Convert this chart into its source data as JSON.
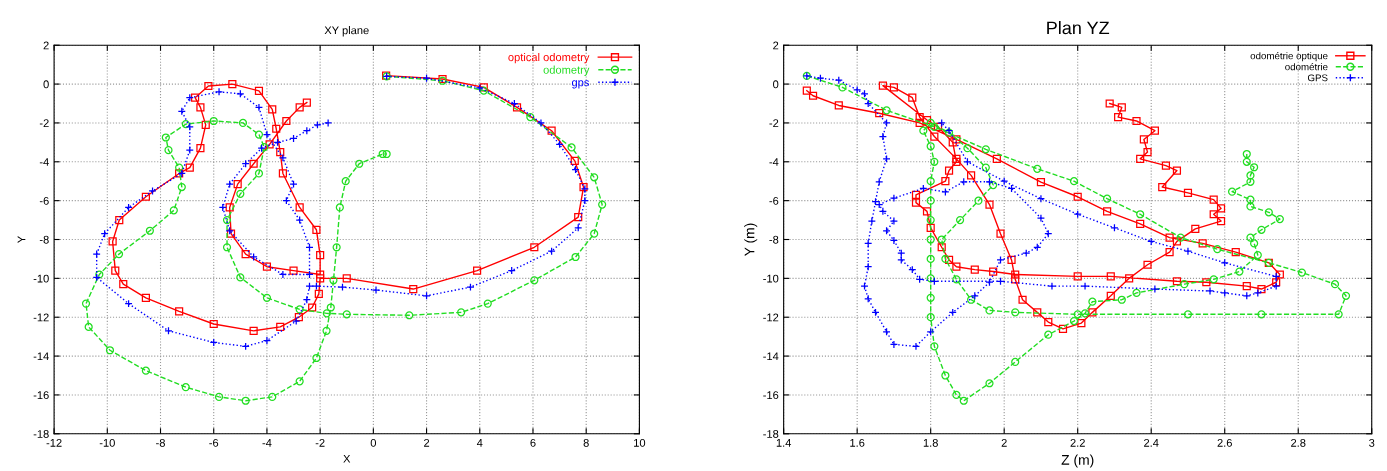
{
  "chart_data": [
    {
      "type": "line",
      "title": "XY plane",
      "xlabel": "X",
      "ylabel": "Y",
      "xlim": [
        -12,
        10
      ],
      "ylim": [
        -18,
        2
      ],
      "xticks": [
        -12,
        -10,
        -8,
        -6,
        -4,
        -2,
        0,
        2,
        4,
        6,
        8,
        10
      ],
      "yticks": [
        -18,
        -16,
        -14,
        -12,
        -10,
        -8,
        -6,
        -4,
        -2,
        0,
        2
      ],
      "grid": true,
      "legend": "top right",
      "series": [
        {
          "name": "optical odometry",
          "color": "#ff0000",
          "marker": "square",
          "line_style": "solid",
          "x": [
            0.48,
            2.6,
            4.15,
            5.4,
            6.7,
            7.57,
            7.9,
            7.7,
            6.05,
            3.9,
            1.5,
            -1.0,
            -2.0,
            -2.05,
            -2.3,
            -2.8,
            -3.5,
            -4.5,
            -6.0,
            -7.3,
            -8.55,
            -9.4,
            -9.7,
            -9.8,
            -9.55,
            -8.55,
            -7.3,
            -6.9,
            -6.5,
            -6.3,
            -6.5,
            -6.7,
            -6.2,
            -5.3,
            -4.3,
            -3.8,
            -3.65,
            -3.5,
            -3.4,
            -2.77,
            -2.14,
            -2.0,
            -2.0,
            -3.0,
            -4.0,
            -4.8,
            -5.35,
            -5.4,
            -5.1,
            -4.5,
            -3.9,
            -3.27,
            -2.77,
            -2.5
          ],
          "values": [
            0.43,
            0.26,
            -0.17,
            -1.2,
            -2.4,
            -3.95,
            -5.3,
            -6.85,
            -8.4,
            -9.6,
            -10.55,
            -10.0,
            -10.0,
            -10.8,
            -11.5,
            -12.0,
            -12.5,
            -12.7,
            -12.35,
            -11.7,
            -11.0,
            -10.3,
            -9.6,
            -8.1,
            -7.0,
            -5.8,
            -4.6,
            -4.3,
            -3.3,
            -2.1,
            -1.2,
            -0.7,
            -0.1,
            0.0,
            -0.35,
            -1.3,
            -2.3,
            -3.5,
            -4.6,
            -6.35,
            -7.5,
            -8.8,
            -9.8,
            -9.6,
            -9.4,
            -8.75,
            -7.7,
            -6.35,
            -5.15,
            -4.1,
            -3.1,
            -1.9,
            -1.2,
            -0.95
          ]
        },
        {
          "name": "odometry",
          "color": "#22dd22",
          "marker": "circle",
          "line_style": "dashed",
          "x": [
            0.5,
            2.6,
            4.15,
            5.9,
            7.45,
            8.3,
            8.6,
            8.3,
            7.6,
            6.05,
            4.3,
            3.3,
            1.35,
            -1.0,
            -1.75,
            -2.77,
            -4.0,
            -5.0,
            -5.5,
            -5.5,
            -5.0,
            -4.3,
            -4.1,
            -4.3,
            -4.9,
            -6.0,
            -7.05,
            -7.8,
            -7.7,
            -7.3,
            -7.2,
            -7.5,
            -8.4,
            -9.56,
            -10.3,
            -10.8,
            -10.7,
            -9.9,
            -8.55,
            -7.05,
            -5.8,
            -4.8,
            -3.8,
            -2.77,
            -2.14,
            -1.76,
            -1.6,
            -1.5,
            -1.38,
            -1.26,
            -1.04,
            -0.53,
            0.35,
            0.5
          ],
          "values": [
            0.4,
            0.17,
            -0.34,
            -1.7,
            -3.26,
            -4.8,
            -6.2,
            -7.7,
            -8.9,
            -10.1,
            -11.3,
            -11.75,
            -11.9,
            -11.85,
            -11.8,
            -11.6,
            -11.0,
            -9.95,
            -8.4,
            -7.0,
            -5.65,
            -4.6,
            -3.25,
            -2.6,
            -2.0,
            -1.9,
            -2.06,
            -2.75,
            -3.4,
            -4.3,
            -5.3,
            -6.5,
            -7.55,
            -8.75,
            -9.8,
            -11.3,
            -12.5,
            -13.7,
            -14.75,
            -15.6,
            -16.1,
            -16.3,
            -16.1,
            -15.3,
            -14.1,
            -12.7,
            -11.5,
            -10.1,
            -8.4,
            -6.35,
            -5.0,
            -4.1,
            -3.6,
            -3.6
          ]
        },
        {
          "name": "gps",
          "color": "#0000ff",
          "marker": "cross",
          "line_style": "dotted",
          "x": [
            0.5,
            2.0,
            4.0,
            5.3,
            6.3,
            7.0,
            7.6,
            7.95,
            7.95,
            7.7,
            6.7,
            5.2,
            3.65,
            2.0,
            0.1,
            -1.16,
            -2.14,
            -2.4,
            -2.5,
            -2.9,
            -4.0,
            -4.8,
            -6.0,
            -7.7,
            -9.2,
            -10.4,
            -10.4,
            -10.1,
            -9.2,
            -8.3,
            -7.2,
            -6.9,
            -6.9,
            -7.2,
            -6.9,
            -5.8,
            -5.0,
            -4.3,
            -4.0,
            -3.4,
            -3.0,
            -3.27,
            -2.77,
            -2.4,
            -2.4,
            -3.4,
            -4.5,
            -5.4,
            -5.66,
            -5.4,
            -4.8,
            -4.2,
            -3.6,
            -3.0,
            -2.5,
            -2.1,
            -1.7
          ],
          "values": [
            0.4,
            0.3,
            -0.2,
            -1.0,
            -2.0,
            -3.1,
            -4.4,
            -5.4,
            -6.0,
            -7.4,
            -8.6,
            -9.6,
            -10.45,
            -10.9,
            -10.6,
            -10.45,
            -10.4,
            -10.4,
            -11.1,
            -12.2,
            -13.2,
            -13.5,
            -13.3,
            -12.7,
            -11.3,
            -9.95,
            -8.75,
            -7.7,
            -6.35,
            -5.5,
            -4.6,
            -3.4,
            -2.2,
            -1.4,
            -0.7,
            -0.4,
            -0.5,
            -1.2,
            -2.6,
            -3.8,
            -5.15,
            -6.0,
            -7.0,
            -8.4,
            -9.8,
            -9.8,
            -8.9,
            -7.55,
            -6.35,
            -5.15,
            -4.1,
            -3.3,
            -3.0,
            -2.8,
            -2.4,
            -2.1,
            -2.0
          ]
        }
      ]
    },
    {
      "type": "line",
      "title": "Plan YZ",
      "xlabel": "Z (m)",
      "ylabel": "Y (m)",
      "xlim": [
        1.4,
        3
      ],
      "ylim": [
        -18,
        2
      ],
      "xticks": [
        1.4,
        1.6,
        1.8,
        2,
        2.2,
        2.4,
        2.6,
        2.8,
        3
      ],
      "yticks": [
        -18,
        -16,
        -14,
        -12,
        -10,
        -8,
        -6,
        -4,
        -2,
        0,
        2
      ],
      "grid": true,
      "legend": "top right",
      "series": [
        {
          "name": "odométrie optique",
          "color": "#ff0000",
          "marker": "square",
          "line_style": "solid",
          "x": [
            2.287,
            2.32,
            2.31,
            2.36,
            2.41,
            2.38,
            2.39,
            2.37,
            2.44,
            2.47,
            2.43,
            2.5,
            2.57,
            2.59,
            2.57,
            2.59,
            2.52,
            2.47,
            2.45,
            2.39,
            2.34,
            2.29,
            2.24,
            2.21,
            2.16,
            2.12,
            2.09,
            2.05,
            2.03,
            2.02,
            1.99,
            1.96,
            1.91,
            1.87,
            1.81,
            1.77,
            1.75,
            1.7,
            1.67,
            1.79,
            1.82,
            1.86,
            1.87,
            1.85,
            1.84,
            1.76,
            1.76,
            1.79,
            1.8,
            1.83,
            1.85,
            1.87,
            1.92,
            1.97,
            2.03,
            2.2,
            2.29,
            2.47,
            2.55,
            2.66,
            2.7,
            2.74,
            2.75,
            2.72,
            2.63,
            2.54,
            2.45,
            2.37,
            2.28,
            2.2,
            2.1,
            1.98,
            1.87,
            1.77,
            1.66,
            1.55,
            1.48,
            1.463
          ],
          "values": [
            -1.0,
            -1.2,
            -1.7,
            -1.9,
            -2.4,
            -2.85,
            -3.5,
            -3.85,
            -4.2,
            -4.45,
            -5.3,
            -5.6,
            -5.95,
            -6.4,
            -6.7,
            -7.05,
            -7.45,
            -8.1,
            -8.65,
            -9.3,
            -10.0,
            -10.9,
            -11.75,
            -12.3,
            -12.6,
            -12.25,
            -11.75,
            -11.1,
            -10.05,
            -9.05,
            -7.7,
            -6.2,
            -4.7,
            -3.85,
            -2.7,
            -1.7,
            -0.7,
            -0.17,
            -0.08,
            -1.85,
            -2.2,
            -3.0,
            -4.0,
            -4.45,
            -5.0,
            -5.7,
            -6.1,
            -6.55,
            -7.4,
            -8.4,
            -9.05,
            -9.4,
            -9.55,
            -9.65,
            -9.8,
            -9.9,
            -9.9,
            -10.15,
            -10.2,
            -10.4,
            -10.55,
            -10.2,
            -9.8,
            -9.2,
            -8.65,
            -8.2,
            -7.9,
            -7.2,
            -6.55,
            -5.8,
            -5.05,
            -3.85,
            -2.85,
            -2.0,
            -1.5,
            -1.1,
            -0.6,
            -0.34
          ]
        },
        {
          "name": "odométrie",
          "color": "#22dd22",
          "marker": "circle",
          "line_style": "dashed",
          "x": [
            1.463,
            1.56,
            1.68,
            1.81,
            1.95,
            2.09,
            2.19,
            2.28,
            2.37,
            2.48,
            2.58,
            2.72,
            2.81,
            2.9,
            2.93,
            2.91,
            2.7,
            2.5,
            2.2,
            2.03,
            1.96,
            1.91,
            1.87,
            1.84,
            1.83,
            1.88,
            1.93,
            1.97,
            1.95,
            1.9,
            1.85,
            1.8,
            1.78,
            1.8,
            1.81,
            1.8,
            1.8,
            1.8,
            1.8,
            1.8,
            1.8,
            1.8,
            1.8,
            1.81,
            1.84,
            1.87,
            1.89,
            1.96,
            2.03,
            2.12,
            2.19,
            2.22,
            2.24,
            2.32,
            2.36,
            2.49,
            2.57,
            2.64,
            2.69,
            2.68,
            2.67,
            2.7,
            2.75,
            2.72,
            2.67,
            2.67,
            2.62,
            2.67,
            2.67,
            2.68,
            2.66,
            2.66
          ],
          "values": [
            0.42,
            -0.17,
            -1.35,
            -2.2,
            -3.36,
            -4.36,
            -5.0,
            -5.9,
            -6.7,
            -7.9,
            -8.5,
            -9.2,
            -9.7,
            -10.3,
            -10.9,
            -11.85,
            -11.85,
            -11.85,
            -11.85,
            -11.75,
            -11.65,
            -11.1,
            -10.05,
            -9.0,
            -8.0,
            -7.0,
            -6.0,
            -5.2,
            -4.3,
            -3.3,
            -2.5,
            -2.0,
            -2.4,
            -3.2,
            -4.0,
            -5.0,
            -6.0,
            -7.0,
            -8.0,
            -9.0,
            -10.0,
            -11.0,
            -12.0,
            -13.5,
            -15.0,
            -16.0,
            -16.3,
            -15.4,
            -14.3,
            -12.9,
            -12.2,
            -11.8,
            -11.2,
            -11.1,
            -10.75,
            -10.3,
            -10.05,
            -9.65,
            -8.8,
            -8.2,
            -7.9,
            -7.5,
            -6.95,
            -6.6,
            -6.3,
            -5.95,
            -5.54,
            -5.03,
            -4.7,
            -4.28,
            -4.0,
            -3.6
          ]
        },
        {
          "name": "GPS",
          "color": "#0000ff",
          "marker": "cross",
          "line_style": "dotted",
          "x": [
            1.463,
            1.5,
            1.55,
            1.6,
            1.62,
            1.63,
            1.68,
            1.67,
            1.68,
            1.66,
            1.65,
            1.64,
            1.63,
            1.63,
            1.62,
            1.63,
            1.65,
            1.68,
            1.7,
            1.76,
            1.8,
            1.86,
            1.92,
            1.96,
            1.99,
            2.06,
            2.09,
            2.12,
            2.1,
            2.02,
            1.96,
            1.89,
            1.84,
            1.78,
            1.7,
            1.66,
            1.67,
            1.7,
            1.68,
            1.7,
            1.72,
            1.72,
            1.75,
            1.77,
            1.81,
            1.99,
            2.13,
            2.22,
            2.41,
            2.56,
            2.6,
            2.66,
            2.69,
            2.74,
            2.74,
            2.6,
            2.5,
            2.4,
            2.3,
            2.2,
            2.1,
            2.0,
            1.9,
            1.85,
            1.83
          ],
          "values": [
            0.42,
            0.3,
            0.2,
            -0.3,
            -0.5,
            -1.0,
            -2.0,
            -2.7,
            -3.85,
            -5.03,
            -6.05,
            -7.05,
            -8.2,
            -9.4,
            -10.4,
            -11.05,
            -11.75,
            -12.75,
            -13.4,
            -13.5,
            -12.75,
            -11.75,
            -10.9,
            -10.2,
            -9.05,
            -8.7,
            -8.4,
            -7.7,
            -6.9,
            -5.37,
            -5.03,
            -5.03,
            -5.55,
            -5.37,
            -5.87,
            -6.2,
            -6.55,
            -7.05,
            -7.55,
            -8.05,
            -8.7,
            -9.05,
            -9.55,
            -10.05,
            -10.15,
            -10.15,
            -10.4,
            -10.4,
            -10.55,
            -10.65,
            -10.75,
            -10.9,
            -10.75,
            -10.4,
            -9.9,
            -9.2,
            -8.6,
            -8.1,
            -7.4,
            -6.7,
            -5.9,
            -5.0,
            -4.0,
            -2.4,
            -2.0
          ]
        }
      ]
    }
  ]
}
